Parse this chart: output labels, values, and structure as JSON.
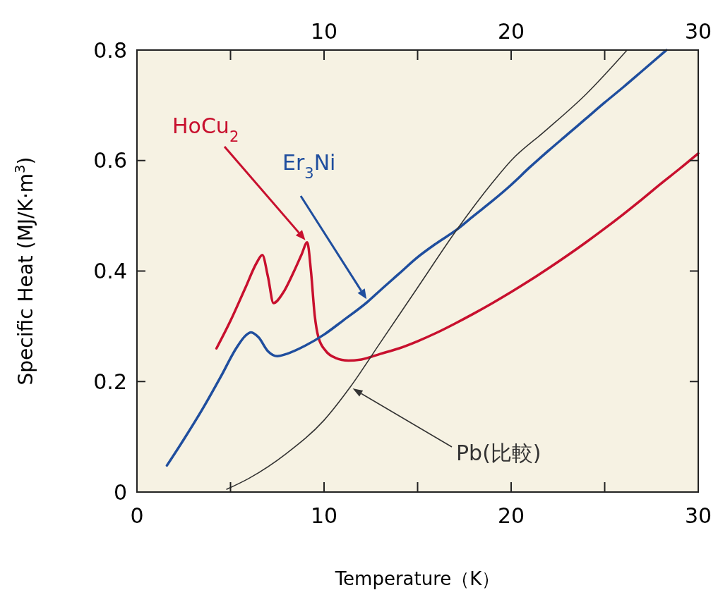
{
  "chart_data": {
    "type": "line",
    "xlabel": "Temperature（K）",
    "ylabel": "Specific  Heat (MJ/K·m$^{3}$)",
    "xlim": [
      0,
      30
    ],
    "xticks": [
      0,
      {
        "value": 5,
        "label": null
      },
      10,
      {
        "value": 15,
        "label": null
      },
      20,
      {
        "value": 25,
        "label": null
      },
      30
    ],
    "x2lim": [
      0,
      30
    ],
    "x2ticks": [
      {
        "value": 5,
        "label": null
      },
      10,
      {
        "value": 15,
        "label": null
      },
      20,
      {
        "value": 25,
        "label": null
      },
      30
    ],
    "ylim": [
      0,
      0.8
    ],
    "yticks": [
      0,
      0.2,
      0.4,
      0.6,
      0.8
    ],
    "grid": false,
    "marker": "none",
    "line_style": "solid",
    "series": [
      {
        "name": "HoCu$_{2}$",
        "color": "#c8102e",
        "x": [
          4.25,
          5,
          5.8,
          6.4,
          6.7,
          7.0,
          7.3,
          7.8,
          8.4,
          8.8,
          9.1,
          9.3,
          9.5,
          9.7,
          10.1,
          10.6,
          11.3,
          12,
          13,
          14,
          15,
          16,
          17,
          18,
          19,
          20,
          21,
          22,
          23,
          24,
          25,
          26,
          27,
          28,
          29,
          30
        ],
        "values": [
          0.26,
          0.31,
          0.37,
          0.415,
          0.429,
          0.39,
          0.342,
          0.36,
          0.4,
          0.43,
          0.452,
          0.4,
          0.32,
          0.28,
          0.255,
          0.243,
          0.238,
          0.24,
          0.25,
          0.26,
          0.273,
          0.288,
          0.305,
          0.323,
          0.342,
          0.362,
          0.383,
          0.405,
          0.428,
          0.452,
          0.477,
          0.503,
          0.53,
          0.558,
          0.585,
          0.613
        ]
      },
      {
        "name": "Er$_{3}$Ni",
        "color": "#1f4e9e",
        "x": [
          1.6,
          2.5,
          3.5,
          4.5,
          5.3,
          5.8,
          6.1,
          6.5,
          7,
          7.5,
          8,
          9,
          10,
          11,
          12.35,
          13,
          14,
          15,
          16,
          17.1,
          18,
          19,
          20,
          21,
          22,
          23,
          24,
          25,
          26,
          27,
          28.3
        ],
        "values": [
          0.048,
          0.095,
          0.15,
          0.21,
          0.26,
          0.283,
          0.289,
          0.28,
          0.255,
          0.246,
          0.25,
          0.265,
          0.285,
          0.31,
          0.345,
          0.365,
          0.395,
          0.425,
          0.45,
          0.475,
          0.5,
          0.527,
          0.556,
          0.588,
          0.618,
          0.647,
          0.676,
          0.705,
          0.733,
          0.762,
          0.8
        ]
      },
      {
        "name": "Pb(比較)",
        "color": "#333333",
        "x": [
          4.8,
          6,
          8,
          10,
          11.4,
          13,
          15,
          17.1,
          19,
          20,
          21.8,
          24,
          26.2
        ],
        "values": [
          0.005,
          0.025,
          0.07,
          0.13,
          0.19,
          0.27,
          0.37,
          0.475,
          0.56,
          0.6,
          0.653,
          0.72,
          0.8
        ]
      }
    ]
  }
}
